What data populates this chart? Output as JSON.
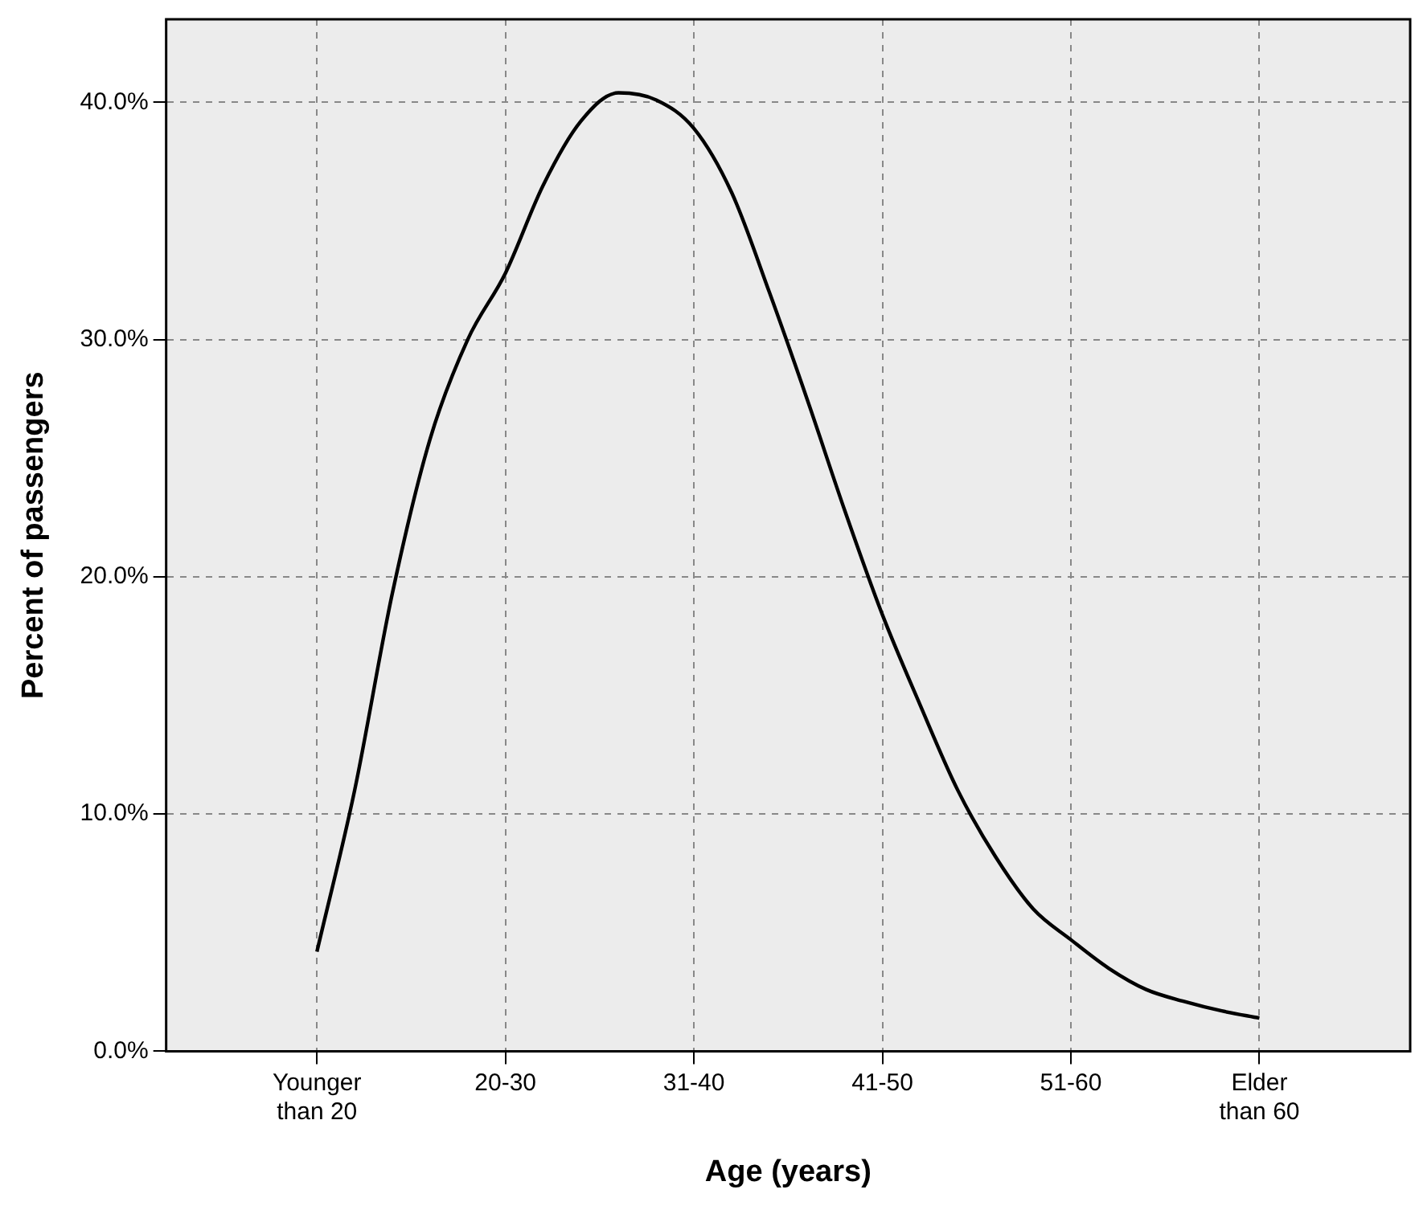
{
  "chart_data": {
    "type": "line",
    "xlabel": "Age (years)",
    "ylabel": "Percent of passengers",
    "categories": [
      null,
      null,
      null,
      null,
      "Younger than 20",
      null,
      null,
      null,
      null,
      "20-30",
      null,
      null,
      null,
      null,
      "31-40",
      null,
      null,
      null,
      null,
      "41-50",
      null,
      null,
      null,
      null,
      "51-60",
      null,
      null,
      null,
      null,
      "Elder than 60",
      null,
      null,
      null,
      null
    ],
    "values": [
      null,
      null,
      null,
      null,
      4.2,
      11.0,
      19.3,
      25.8,
      30.0,
      32.8,
      36.5,
      39.2,
      40.4,
      40.1,
      38.9,
      36.2,
      32.0,
      27.5,
      22.8,
      18.4,
      14.6,
      11.0,
      8.2,
      6.0,
      4.7,
      3.5,
      2.6,
      2.1,
      1.7,
      1.4,
      null,
      null,
      null,
      null
    ],
    "color": "#000000",
    "ylim": [
      0,
      43.5
    ],
    "yticks": [
      {
        "value": 0,
        "label": "0.0%"
      },
      {
        "value": 10,
        "label": "10.0%"
      },
      {
        "value": 20,
        "label": "20.0%"
      },
      {
        "value": 30,
        "label": "30.0%"
      },
      {
        "value": 40,
        "label": "40.0%"
      }
    ],
    "grid": true,
    "marker": "none",
    "line_style": "solid"
  }
}
